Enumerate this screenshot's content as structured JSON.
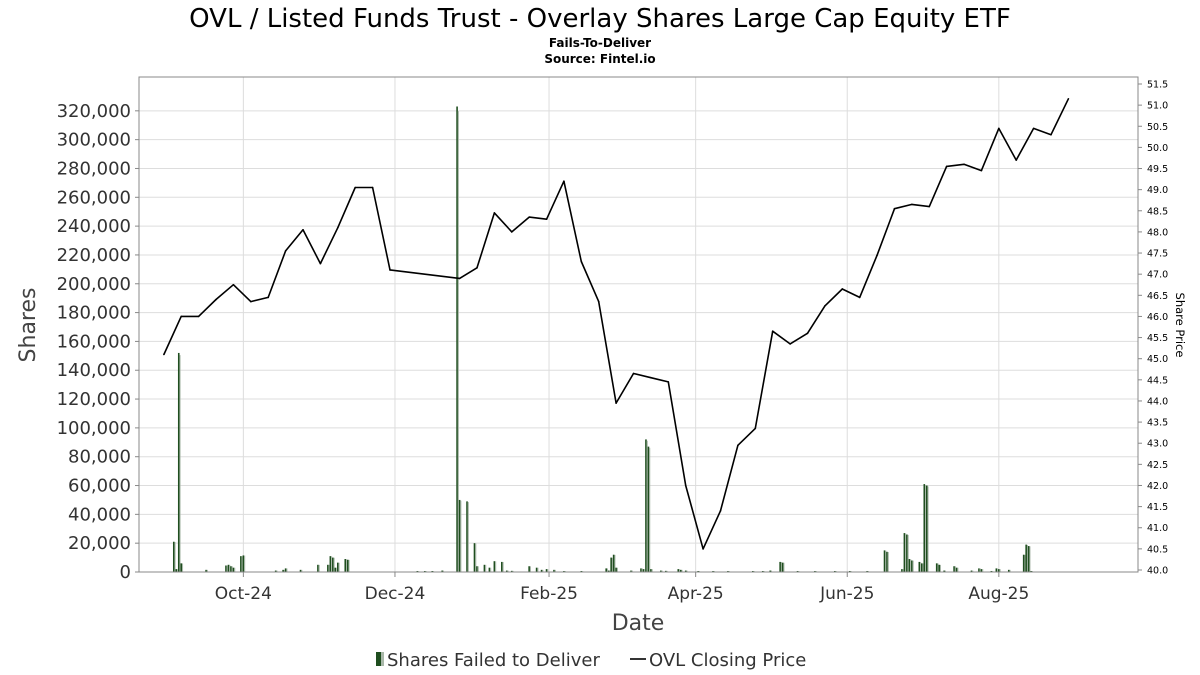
{
  "chart_data": {
    "type": "bar",
    "title": "OVL / Listed Funds Trust - Overlay Shares Large Cap Equity ETF",
    "subtitle": "Fails-To-Deliver",
    "source": "Source: Fintel.io",
    "xlabel": "Date",
    "ylabel": "Shares",
    "y2label": "Share Price",
    "ylim": [
      0,
      340000
    ],
    "y2lim": [
      40.0,
      51.5
    ],
    "grid": true,
    "legend_position": "bottom",
    "x_range": [
      "2024-08-20",
      "2025-09-26"
    ],
    "x_ticks": [
      {
        "date": "2024-10-01",
        "label": "Oct-24"
      },
      {
        "date": "2024-12-01",
        "label": "Dec-24"
      },
      {
        "date": "2025-02-01",
        "label": "Feb-25"
      },
      {
        "date": "2025-04-01",
        "label": "Apr-25"
      },
      {
        "date": "2025-06-01",
        "label": "Jun-25"
      },
      {
        "date": "2025-08-01",
        "label": "Aug-25"
      }
    ],
    "y_ticks": [
      0,
      20000,
      40000,
      60000,
      80000,
      100000,
      120000,
      140000,
      160000,
      180000,
      200000,
      220000,
      240000,
      260000,
      280000,
      300000,
      320000
    ],
    "y_tick_labels": [
      "0",
      "20,000",
      "40,000",
      "60,000",
      "80,000",
      "100,000",
      "120,000",
      "140,000",
      "160,000",
      "180,000",
      "200,000",
      "220,000",
      "240,000",
      "260,000",
      "280,000",
      "300,000",
      "320,000"
    ],
    "y2_ticks": [
      40.0,
      40.5,
      41.0,
      41.5,
      42.0,
      42.5,
      43.0,
      43.5,
      44.0,
      44.5,
      45.0,
      45.5,
      46.0,
      46.5,
      47.0,
      47.5,
      48.0,
      48.5,
      49.0,
      49.5,
      50.0,
      50.5,
      51.0,
      51.5
    ],
    "y2_tick_labels": [
      "40.0",
      "40.5",
      "41.0",
      "41.5",
      "42.0",
      "42.5",
      "43.0",
      "43.5",
      "44.0",
      "44.5",
      "45.0",
      "45.5",
      "46.0",
      "46.5",
      "47.0",
      "47.5",
      "48.0",
      "48.5",
      "49.0",
      "49.5",
      "50.0",
      "50.5",
      "51.0",
      "51.5"
    ],
    "series": [
      {
        "name": "Shares Failed to Deliver",
        "kind": "bar",
        "color": "#1f4e1f",
        "points": [
          {
            "date": "2024-09-03",
            "value": 21000
          },
          {
            "date": "2024-09-04",
            "value": 2000
          },
          {
            "date": "2024-09-05",
            "value": 152000
          },
          {
            "date": "2024-09-06",
            "value": 6000
          },
          {
            "date": "2024-09-16",
            "value": 1500
          },
          {
            "date": "2024-09-24",
            "value": 4500
          },
          {
            "date": "2024-09-25",
            "value": 5000
          },
          {
            "date": "2024-09-26",
            "value": 4000
          },
          {
            "date": "2024-09-27",
            "value": 3000
          },
          {
            "date": "2024-09-30",
            "value": 11000
          },
          {
            "date": "2024-10-01",
            "value": 11500
          },
          {
            "date": "2024-10-14",
            "value": 1000
          },
          {
            "date": "2024-10-17",
            "value": 1500
          },
          {
            "date": "2024-10-18",
            "value": 2500
          },
          {
            "date": "2024-10-24",
            "value": 1500
          },
          {
            "date": "2024-10-31",
            "value": 5000
          },
          {
            "date": "2024-11-04",
            "value": 5000
          },
          {
            "date": "2024-11-05",
            "value": 11000
          },
          {
            "date": "2024-11-06",
            "value": 10000
          },
          {
            "date": "2024-11-07",
            "value": 3000
          },
          {
            "date": "2024-11-08",
            "value": 6500
          },
          {
            "date": "2024-11-11",
            "value": 9000
          },
          {
            "date": "2024-11-12",
            "value": 8500
          },
          {
            "date": "2024-12-10",
            "value": 500
          },
          {
            "date": "2024-12-13",
            "value": 500
          },
          {
            "date": "2024-12-16",
            "value": 500
          },
          {
            "date": "2024-12-20",
            "value": 1000
          },
          {
            "date": "2024-12-26",
            "value": 323000
          },
          {
            "date": "2024-12-27",
            "value": 50000
          },
          {
            "date": "2024-12-30",
            "value": 49000
          },
          {
            "date": "2025-01-02",
            "value": 20000
          },
          {
            "date": "2025-01-03",
            "value": 4000
          },
          {
            "date": "2025-01-06",
            "value": 5000
          },
          {
            "date": "2025-01-08",
            "value": 3000
          },
          {
            "date": "2025-01-10",
            "value": 7500
          },
          {
            "date": "2025-01-13",
            "value": 7000
          },
          {
            "date": "2025-01-15",
            "value": 1000
          },
          {
            "date": "2025-01-17",
            "value": 800
          },
          {
            "date": "2025-01-24",
            "value": 4000
          },
          {
            "date": "2025-01-27",
            "value": 3000
          },
          {
            "date": "2025-01-29",
            "value": 1500
          },
          {
            "date": "2025-01-31",
            "value": 2000
          },
          {
            "date": "2025-02-03",
            "value": 1500
          },
          {
            "date": "2025-02-07",
            "value": 500
          },
          {
            "date": "2025-02-14",
            "value": 500
          },
          {
            "date": "2025-02-24",
            "value": 2500
          },
          {
            "date": "2025-02-25",
            "value": 1000
          },
          {
            "date": "2025-02-26",
            "value": 10000
          },
          {
            "date": "2025-02-27",
            "value": 12000
          },
          {
            "date": "2025-02-28",
            "value": 3000
          },
          {
            "date": "2025-03-06",
            "value": 1000
          },
          {
            "date": "2025-03-10",
            "value": 2500
          },
          {
            "date": "2025-03-11",
            "value": 2000
          },
          {
            "date": "2025-03-12",
            "value": 92000
          },
          {
            "date": "2025-03-13",
            "value": 87000
          },
          {
            "date": "2025-03-14",
            "value": 2000
          },
          {
            "date": "2025-03-18",
            "value": 1000
          },
          {
            "date": "2025-03-20",
            "value": 800
          },
          {
            "date": "2025-03-25",
            "value": 2000
          },
          {
            "date": "2025-03-26",
            "value": 1500
          },
          {
            "date": "2025-03-28",
            "value": 1000
          },
          {
            "date": "2025-04-02",
            "value": 600
          },
          {
            "date": "2025-04-08",
            "value": 600
          },
          {
            "date": "2025-04-14",
            "value": 500
          },
          {
            "date": "2025-04-24",
            "value": 500
          },
          {
            "date": "2025-04-28",
            "value": 600
          },
          {
            "date": "2025-05-01",
            "value": 1000
          },
          {
            "date": "2025-05-05",
            "value": 7000
          },
          {
            "date": "2025-05-06",
            "value": 6500
          },
          {
            "date": "2025-05-12",
            "value": 500
          },
          {
            "date": "2025-05-19",
            "value": 500
          },
          {
            "date": "2025-05-27",
            "value": 500
          },
          {
            "date": "2025-06-02",
            "value": 500
          },
          {
            "date": "2025-06-09",
            "value": 500
          },
          {
            "date": "2025-06-16",
            "value": 15000
          },
          {
            "date": "2025-06-17",
            "value": 14000
          },
          {
            "date": "2025-06-23",
            "value": 2000
          },
          {
            "date": "2025-06-24",
            "value": 27000
          },
          {
            "date": "2025-06-25",
            "value": 26000
          },
          {
            "date": "2025-06-26",
            "value": 9000
          },
          {
            "date": "2025-06-27",
            "value": 8000
          },
          {
            "date": "2025-06-30",
            "value": 7000
          },
          {
            "date": "2025-07-01",
            "value": 6000
          },
          {
            "date": "2025-07-02",
            "value": 61000
          },
          {
            "date": "2025-07-03",
            "value": 60000
          },
          {
            "date": "2025-07-07",
            "value": 6000
          },
          {
            "date": "2025-07-08",
            "value": 5000
          },
          {
            "date": "2025-07-10",
            "value": 1000
          },
          {
            "date": "2025-07-14",
            "value": 4000
          },
          {
            "date": "2025-07-15",
            "value": 3000
          },
          {
            "date": "2025-07-21",
            "value": 1000
          },
          {
            "date": "2025-07-24",
            "value": 2500
          },
          {
            "date": "2025-07-25",
            "value": 2000
          },
          {
            "date": "2025-07-29",
            "value": 500
          },
          {
            "date": "2025-07-31",
            "value": 2500
          },
          {
            "date": "2025-08-01",
            "value": 2000
          },
          {
            "date": "2025-08-05",
            "value": 1500
          },
          {
            "date": "2025-08-11",
            "value": 12000
          },
          {
            "date": "2025-08-12",
            "value": 19000
          },
          {
            "date": "2025-08-13",
            "value": 18000
          },
          {
            "date": "2025-08-14",
            "value": 500
          }
        ]
      },
      {
        "name": "OVL Closing Price",
        "kind": "line",
        "color": "#000000",
        "points": [
          {
            "date": "2024-08-30",
            "value": 45.1
          },
          {
            "date": "2024-09-06",
            "value": 46.0
          },
          {
            "date": "2024-09-13",
            "value": 46.0
          },
          {
            "date": "2024-09-20",
            "value": 46.4
          },
          {
            "date": "2024-09-27",
            "value": 46.75
          },
          {
            "date": "2024-10-04",
            "value": 46.35
          },
          {
            "date": "2024-10-11",
            "value": 46.45
          },
          {
            "date": "2024-10-18",
            "value": 47.55
          },
          {
            "date": "2024-10-25",
            "value": 48.05
          },
          {
            "date": "2024-11-01",
            "value": 47.25
          },
          {
            "date": "2024-11-08",
            "value": 48.1
          },
          {
            "date": "2024-11-15",
            "value": 49.05
          },
          {
            "date": "2024-11-22",
            "value": 49.05
          },
          {
            "date": "2024-11-29",
            "value": 47.1
          },
          {
            "date": "2024-12-27",
            "value": 46.9
          },
          {
            "date": "2025-01-03",
            "value": 47.15
          },
          {
            "date": "2025-01-10",
            "value": 48.45
          },
          {
            "date": "2025-01-17",
            "value": 48.0
          },
          {
            "date": "2025-01-24",
            "value": 48.35
          },
          {
            "date": "2025-01-31",
            "value": 48.3
          },
          {
            "date": "2025-02-07",
            "value": 49.2
          },
          {
            "date": "2025-02-14",
            "value": 47.3
          },
          {
            "date": "2025-02-21",
            "value": 46.35
          },
          {
            "date": "2025-02-28",
            "value": 43.95
          },
          {
            "date": "2025-03-07",
            "value": 44.65
          },
          {
            "date": "2025-03-14",
            "value": 44.55
          },
          {
            "date": "2025-03-21",
            "value": 44.45
          },
          {
            "date": "2025-03-28",
            "value": 42.0
          },
          {
            "date": "2025-04-04",
            "value": 40.5
          },
          {
            "date": "2025-04-11",
            "value": 41.4
          },
          {
            "date": "2025-04-18",
            "value": 42.95
          },
          {
            "date": "2025-04-25",
            "value": 43.35
          },
          {
            "date": "2025-05-02",
            "value": 45.65
          },
          {
            "date": "2025-05-09",
            "value": 45.35
          },
          {
            "date": "2025-05-16",
            "value": 45.6
          },
          {
            "date": "2025-05-23",
            "value": 46.25
          },
          {
            "date": "2025-05-30",
            "value": 46.65
          },
          {
            "date": "2025-06-06",
            "value": 46.45
          },
          {
            "date": "2025-06-13",
            "value": 47.45
          },
          {
            "date": "2025-06-20",
            "value": 48.55
          },
          {
            "date": "2025-06-27",
            "value": 48.65
          },
          {
            "date": "2025-07-04",
            "value": 48.6
          },
          {
            "date": "2025-07-11",
            "value": 49.55
          },
          {
            "date": "2025-07-18",
            "value": 49.6
          },
          {
            "date": "2025-07-25",
            "value": 49.45
          },
          {
            "date": "2025-08-01",
            "value": 50.45
          },
          {
            "date": "2025-08-08",
            "value": 49.7
          },
          {
            "date": "2025-08-15",
            "value": 50.45
          },
          {
            "date": "2025-08-22",
            "value": 50.3
          },
          {
            "date": "2025-08-29",
            "value": 51.15
          }
        ]
      }
    ],
    "legend": [
      {
        "label": "Shares Failed to Deliver",
        "marker": "bar",
        "color": "#1f4e1f"
      },
      {
        "label": "OVL Closing Price",
        "marker": "line",
        "color": "#000000"
      }
    ]
  }
}
